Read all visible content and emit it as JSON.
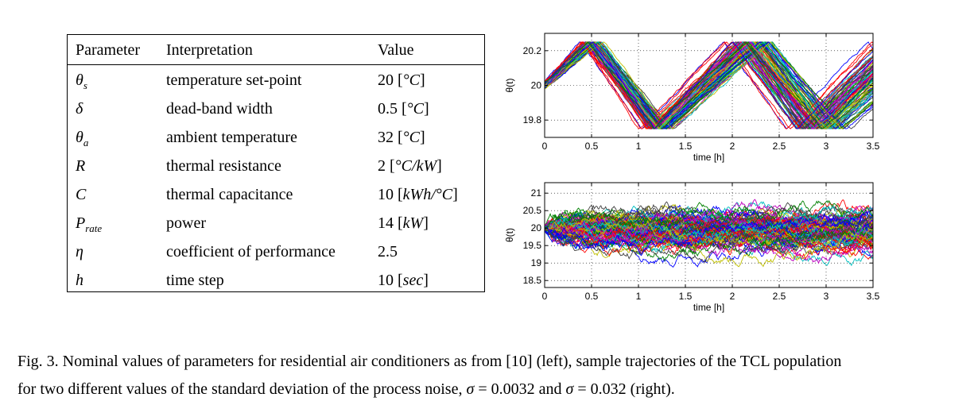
{
  "table": {
    "headers": [
      "Parameter",
      "Interpretation",
      "Value"
    ],
    "rows": [
      {
        "symbol": "θ",
        "sub": "s",
        "interpretation": "temperature set-point",
        "value_num": "20",
        "unit": "°C"
      },
      {
        "symbol": "δ",
        "sub": "",
        "interpretation": "dead-band width",
        "value_num": "0.5",
        "unit": "°C"
      },
      {
        "symbol": "θ",
        "sub": "a",
        "interpretation": "ambient temperature",
        "value_num": "32",
        "unit": "°C"
      },
      {
        "symbol": "R",
        "sub": "",
        "interpretation": "thermal resistance",
        "value_num": "2",
        "unit": "°C/kW"
      },
      {
        "symbol": "C",
        "sub": "",
        "interpretation": "thermal capacitance",
        "value_num": "10",
        "unit": "kWh/°C"
      },
      {
        "symbol": "P",
        "sub": "rate",
        "interpretation": "power",
        "value_num": "14",
        "unit": "kW"
      },
      {
        "symbol": "η",
        "sub": "",
        "interpretation": "coefficient of performance",
        "value_num": "2.5",
        "unit": ""
      },
      {
        "symbol": "h",
        "sub": "",
        "interpretation": "time step",
        "value_num": "10",
        "unit": "sec"
      }
    ]
  },
  "chart_data": [
    {
      "type": "line",
      "title": "",
      "xlabel": "time [h]",
      "ylabel": "θ(t)",
      "xlim": [
        0,
        3.5
      ],
      "ylim": [
        19.7,
        20.3
      ],
      "xticks": [
        "0",
        "0.5",
        "1",
        "1.5",
        "2",
        "2.5",
        "3",
        "3.5"
      ],
      "yticks": [
        "19.8",
        "20",
        "20.2"
      ],
      "yticks_values": [
        19.8,
        20.0,
        20.2
      ],
      "grid": true,
      "series_count": 100,
      "band": [
        19.75,
        20.25
      ],
      "noise_sigma": 0.0032,
      "description": "sawtooth trajectories switching between 19.75 and 20.25"
    },
    {
      "type": "line",
      "title": "",
      "xlabel": "time [h]",
      "ylabel": "θ(t)",
      "xlim": [
        0,
        3.5
      ],
      "ylim": [
        18.3,
        21.3
      ],
      "xticks": [
        "0",
        "0.5",
        "1",
        "1.5",
        "2",
        "2.5",
        "3",
        "3.5"
      ],
      "yticks": [
        "18.5",
        "19",
        "19.5",
        "20",
        "20.5",
        "21"
      ],
      "yticks_values": [
        18.5,
        19.0,
        19.5,
        20.0,
        20.5,
        21.0
      ],
      "grid": true,
      "series_count": 100,
      "noise_sigma": 0.032,
      "description": "noisy trajectories spreading around 20"
    }
  ],
  "series_colors": [
    "#0000ff",
    "#008000",
    "#ff0000",
    "#00bfbf",
    "#bf00bf",
    "#bfbf00",
    "#404040"
  ],
  "caption": {
    "prefix": "Fig. 3.  Nominal values of parameters for residential air conditioners as from [10] (left), sample trajectories of the TCL population",
    "line2_a": "for two different values of the standard deviation of the process noise, ",
    "sigma": "σ",
    "eq1": " = 0.0032 and ",
    "eq2": " = 0.032 (right)."
  }
}
